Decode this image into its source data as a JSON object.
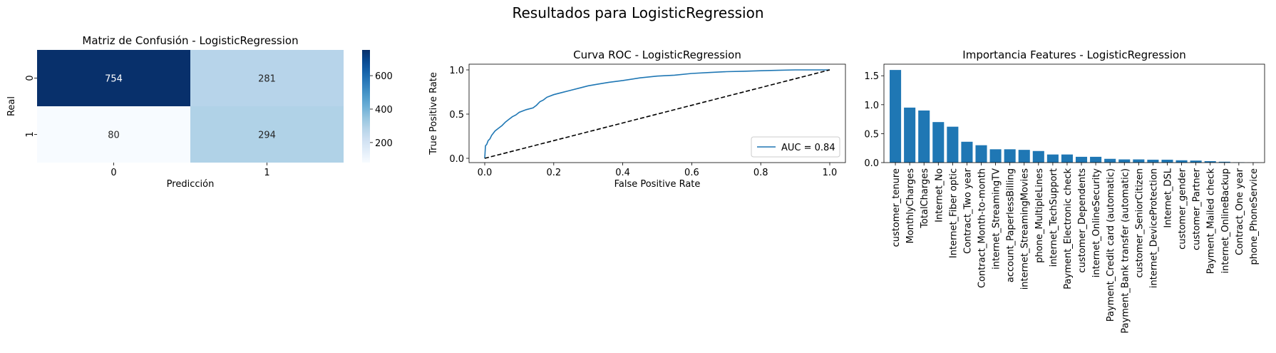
{
  "figure": {
    "suptitle": "Resultados para LogisticRegression"
  },
  "chart_data": [
    {
      "type": "heatmap",
      "title": "Matriz de Confusión - LogisticRegression",
      "xlabel": "Predicción",
      "ylabel": "Real",
      "x_categories": [
        "0",
        "1"
      ],
      "y_categories": [
        "0",
        "1"
      ],
      "values": [
        [
          754,
          281
        ],
        [
          80,
          294
        ]
      ],
      "colormap": "Blues",
      "colorbar_ticks": [
        200,
        400,
        600
      ],
      "colorbar_range": [
        80,
        754
      ]
    },
    {
      "type": "line",
      "title": "Curva ROC - LogisticRegression",
      "xlabel": "False Positive Rate",
      "ylabel": "True Positive Rate",
      "xlim": [
        0,
        1
      ],
      "ylim": [
        0,
        1
      ],
      "xticks": [
        "0.0",
        "0.2",
        "0.4",
        "0.6",
        "0.8",
        "1.0"
      ],
      "yticks": [
        "0.0",
        "0.5",
        "1.0"
      ],
      "legend": {
        "position": "lower-right",
        "entries": [
          "AUC = 0.84"
        ]
      },
      "series": [
        {
          "name": "AUC = 0.84",
          "color": "#1f77b4",
          "x": [
            0,
            0.002,
            0.006,
            0.01,
            0.015,
            0.02,
            0.03,
            0.04,
            0.05,
            0.06,
            0.07,
            0.08,
            0.09,
            0.1,
            0.12,
            0.14,
            0.15,
            0.16,
            0.17,
            0.18,
            0.2,
            0.22,
            0.25,
            0.28,
            0.3,
            0.33,
            0.36,
            0.4,
            0.45,
            0.5,
            0.55,
            0.6,
            0.65,
            0.7,
            0.75,
            0.8,
            0.85,
            0.9,
            0.95,
            1.0
          ],
          "y": [
            0,
            0.14,
            0.16,
            0.2,
            0.22,
            0.26,
            0.31,
            0.34,
            0.37,
            0.41,
            0.44,
            0.47,
            0.49,
            0.52,
            0.55,
            0.57,
            0.6,
            0.64,
            0.66,
            0.69,
            0.72,
            0.74,
            0.77,
            0.8,
            0.82,
            0.84,
            0.86,
            0.88,
            0.91,
            0.93,
            0.94,
            0.96,
            0.97,
            0.98,
            0.985,
            0.99,
            0.995,
            1.0,
            1.0,
            1.0
          ]
        },
        {
          "name": "",
          "color": "#000000",
          "style": "dashed",
          "x": [
            0,
            1
          ],
          "y": [
            0,
            1
          ]
        }
      ]
    },
    {
      "type": "bar",
      "title": "Importancia Features - LogisticRegression",
      "ylim": [
        0,
        1.7
      ],
      "yticks": [
        "0.0",
        "0.5",
        "1.0",
        "1.5"
      ],
      "color": "#1f77b4",
      "categories": [
        "customer_tenure",
        "MonthlyCharges",
        "TotalCharges",
        "Internet_No",
        "Internet_Fiber optic",
        "Contract_Two year",
        "Contract_Month-to-month",
        "internet_StreamingTV",
        "account_PaperlessBilling",
        "internet_StreamingMovies",
        "phone_MultipleLines",
        "internet_TechSupport",
        "Payment_Electronic check",
        "customer_Dependents",
        "internet_OnlineSecurity",
        "Payment_Credit card (automatic)",
        "Payment_Bank transfer (automatic)",
        "customer_SeniorCitizen",
        "internet_DeviceProtection",
        "Internet_DSL",
        "customer_gender",
        "customer_Partner",
        "Payment_Mailed check",
        "internet_OnlineBackup",
        "Contract_One year",
        "phone_PhoneService"
      ],
      "values": [
        1.6,
        0.95,
        0.9,
        0.7,
        0.62,
        0.36,
        0.3,
        0.23,
        0.23,
        0.22,
        0.2,
        0.14,
        0.14,
        0.1,
        0.1,
        0.065,
        0.055,
        0.055,
        0.05,
        0.05,
        0.04,
        0.035,
        0.025,
        0.015,
        0.005,
        0.002
      ]
    }
  ]
}
